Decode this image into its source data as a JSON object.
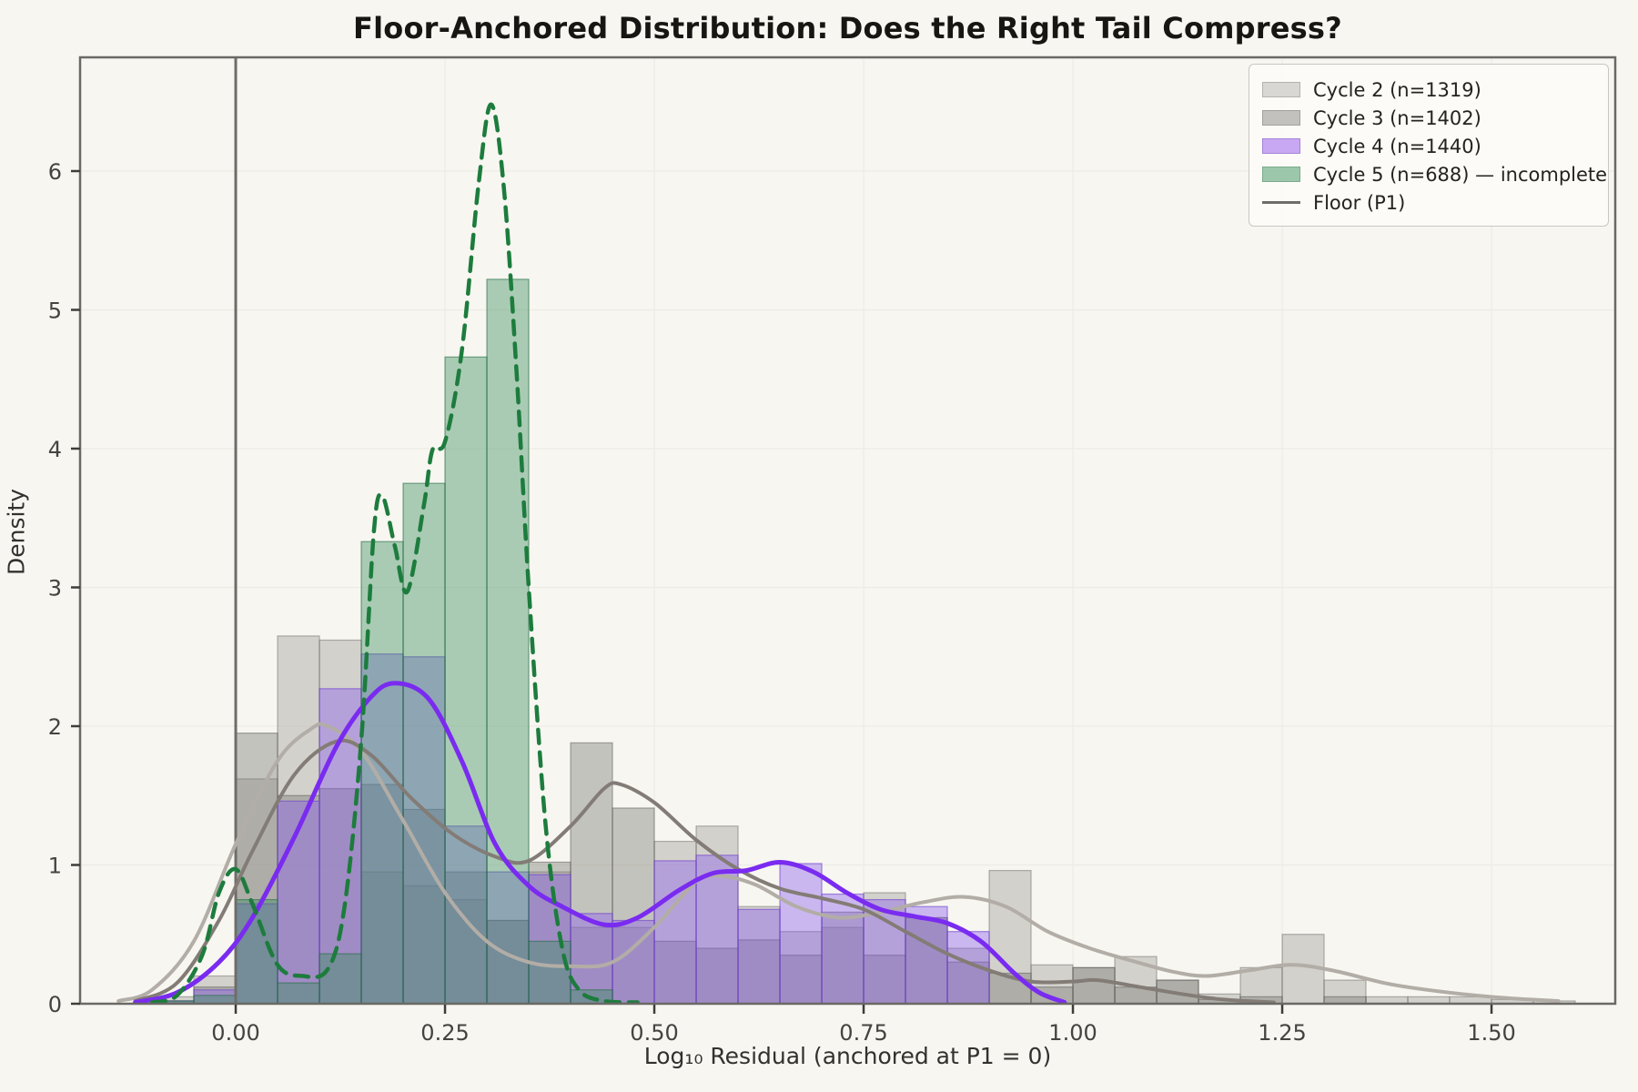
{
  "title": "Floor-Anchored Distribution: Does the Right Tail Compress?",
  "axes": {
    "x_label": "Log₁₀ Residual (anchored at P1 = 0)",
    "y_label": "Density",
    "x_ticks": [
      {
        "v": 0.0,
        "label": "0.00"
      },
      {
        "v": 0.25,
        "label": "0.25"
      },
      {
        "v": 0.5,
        "label": "0.50"
      },
      {
        "v": 0.75,
        "label": "0.75"
      },
      {
        "v": 1.0,
        "label": "1.00"
      },
      {
        "v": 1.25,
        "label": "1.25"
      },
      {
        "v": 1.5,
        "label": "1.50"
      }
    ],
    "y_ticks": [
      {
        "v": 0,
        "label": "0"
      },
      {
        "v": 1,
        "label": "1"
      },
      {
        "v": 2,
        "label": "2"
      },
      {
        "v": 3,
        "label": "3"
      },
      {
        "v": 4,
        "label": "4"
      },
      {
        "v": 5,
        "label": "5"
      },
      {
        "v": 6,
        "label": "6"
      }
    ]
  },
  "legend": {
    "items": [
      {
        "label": "Cycle 2 (n=1319)",
        "type": "patch",
        "color": "#d9d7d3",
        "edge": "#b5b3af"
      },
      {
        "label": "Cycle 3 (n=1402)",
        "type": "patch",
        "color": "#c3c1bd",
        "edge": "#a3a19d"
      },
      {
        "label": "Cycle 4 (n=1440)",
        "type": "patch",
        "color": "#c8a8f2",
        "edge": "#a585d6"
      },
      {
        "label": "Cycle 5 (n=688) — incomplete",
        "type": "patch",
        "color": "#9cc7aa",
        "edge": "#7dab8c"
      },
      {
        "label": "Floor (P1)",
        "type": "line",
        "color": "#6f6d69"
      }
    ]
  },
  "chart_data": {
    "type": "histogram+kde overlay",
    "title": "Floor-Anchored Distribution: Does the Right Tail Compress?",
    "xlabel": "Log₁₀ Residual (anchored at P1 = 0)",
    "ylabel": "Density",
    "xlim": [
      -0.186,
      1.648
    ],
    "ylim": [
      0,
      6.87
    ],
    "grid": true,
    "legend_position": "upper right",
    "bin_width": 0.05,
    "bins_start": [
      -0.1,
      -0.05,
      0.0,
      0.05,
      0.1,
      0.15,
      0.2,
      0.25,
      0.3,
      0.35,
      0.4,
      0.45,
      0.5,
      0.55,
      0.6,
      0.65,
      0.7,
      0.75,
      0.8,
      0.85,
      0.9,
      0.95,
      1.0,
      1.05,
      1.1,
      1.15,
      1.2,
      1.25,
      1.3,
      1.35,
      1.4,
      1.45,
      1.5,
      1.55
    ],
    "floor_line": {
      "x": 0,
      "label": "Floor (P1)",
      "color": "#6f6d69"
    },
    "series": [
      {
        "name": "Cycle 2 (n=1319)",
        "n": 1319,
        "fill": "rgba(158,156,150,0.40)",
        "edge": "rgba(110,108,103,0.50)",
        "line_color": "#b2ada6",
        "line_width": 4,
        "dash": null,
        "hist": [
          0.05,
          0.2,
          1.62,
          2.65,
          2.62,
          0.95,
          0.85,
          0.75,
          0.6,
          0.95,
          0.55,
          0.55,
          1.17,
          1.28,
          0.7,
          0.52,
          0.55,
          0.8,
          0.62,
          0.4,
          0.96,
          0.28,
          0.26,
          0.34,
          0.17,
          0.07,
          0.26,
          0.5,
          0.17,
          0.05,
          0.05,
          0.05,
          0.03,
          0.02
        ],
        "kde": [
          [
            -0.14,
            0.02
          ],
          [
            -0.1,
            0.1
          ],
          [
            -0.05,
            0.45
          ],
          [
            0.0,
            1.15
          ],
          [
            0.05,
            1.75
          ],
          [
            0.09,
            1.98
          ],
          [
            0.11,
            2.0
          ],
          [
            0.15,
            1.82
          ],
          [
            0.2,
            1.32
          ],
          [
            0.25,
            0.8
          ],
          [
            0.3,
            0.45
          ],
          [
            0.35,
            0.3
          ],
          [
            0.4,
            0.27
          ],
          [
            0.45,
            0.3
          ],
          [
            0.5,
            0.55
          ],
          [
            0.55,
            0.88
          ],
          [
            0.58,
            0.92
          ],
          [
            0.62,
            0.86
          ],
          [
            0.67,
            0.7
          ],
          [
            0.72,
            0.62
          ],
          [
            0.77,
            0.66
          ],
          [
            0.82,
            0.73
          ],
          [
            0.87,
            0.77
          ],
          [
            0.92,
            0.7
          ],
          [
            0.97,
            0.52
          ],
          [
            1.02,
            0.4
          ],
          [
            1.07,
            0.31
          ],
          [
            1.12,
            0.23
          ],
          [
            1.16,
            0.2
          ],
          [
            1.21,
            0.24
          ],
          [
            1.26,
            0.28
          ],
          [
            1.31,
            0.24
          ],
          [
            1.38,
            0.14
          ],
          [
            1.45,
            0.08
          ],
          [
            1.52,
            0.04
          ],
          [
            1.58,
            0.02
          ]
        ]
      },
      {
        "name": "Cycle 3 (n=1402)",
        "n": 1402,
        "fill": "rgba(125,123,118,0.42)",
        "edge": "rgba(90,88,84,0.50)",
        "line_color": "#837c76",
        "line_width": 4,
        "dash": null,
        "hist": [
          0.02,
          0.12,
          1.95,
          1.5,
          1.55,
          1.58,
          1.4,
          0.95,
          0.6,
          1.02,
          1.88,
          1.41,
          0.45,
          0.4,
          0.46,
          0.35,
          0.66,
          0.35,
          0.62,
          0.3,
          0.22,
          0.12,
          0.26,
          0.12,
          0.17,
          0.03,
          0.05,
          0.0,
          0.05,
          0,
          0,
          0,
          0,
          0
        ],
        "kde": [
          [
            -0.12,
            0.02
          ],
          [
            -0.07,
            0.15
          ],
          [
            -0.02,
            0.6
          ],
          [
            0.02,
            1.1
          ],
          [
            0.07,
            1.65
          ],
          [
            0.12,
            1.89
          ],
          [
            0.16,
            1.8
          ],
          [
            0.21,
            1.48
          ],
          [
            0.26,
            1.22
          ],
          [
            0.31,
            1.06
          ],
          [
            0.35,
            1.03
          ],
          [
            0.4,
            1.28
          ],
          [
            0.44,
            1.55
          ],
          [
            0.46,
            1.58
          ],
          [
            0.5,
            1.45
          ],
          [
            0.55,
            1.18
          ],
          [
            0.6,
            0.97
          ],
          [
            0.65,
            0.83
          ],
          [
            0.7,
            0.76
          ],
          [
            0.75,
            0.68
          ],
          [
            0.8,
            0.52
          ],
          [
            0.85,
            0.36
          ],
          [
            0.9,
            0.24
          ],
          [
            0.95,
            0.16
          ],
          [
            1.0,
            0.16
          ],
          [
            1.03,
            0.17
          ],
          [
            1.08,
            0.12
          ],
          [
            1.13,
            0.07
          ],
          [
            1.18,
            0.03
          ],
          [
            1.24,
            0.01
          ]
        ]
      },
      {
        "name": "Cycle 4 (n=1440)",
        "n": 1440,
        "fill": "rgba(141,95,236,0.42)",
        "edge": "rgba(108,62,205,0.60)",
        "line_color": "#7a2bf0",
        "line_width": 5,
        "dash": null,
        "hist": [
          0.02,
          0.1,
          0.72,
          1.46,
          2.27,
          2.52,
          2.5,
          1.28,
          0.95,
          0.93,
          0.65,
          0.6,
          1.03,
          1.07,
          0.68,
          1.01,
          0.79,
          0.75,
          0.7,
          0.52,
          0,
          0,
          0,
          0,
          0,
          0,
          0,
          0,
          0,
          0,
          0,
          0,
          0,
          0
        ],
        "kde": [
          [
            -0.12,
            0.01
          ],
          [
            -0.07,
            0.08
          ],
          [
            -0.02,
            0.3
          ],
          [
            0.02,
            0.62
          ],
          [
            0.07,
            1.2
          ],
          [
            0.12,
            1.85
          ],
          [
            0.16,
            2.2
          ],
          [
            0.19,
            2.31
          ],
          [
            0.23,
            2.2
          ],
          [
            0.27,
            1.75
          ],
          [
            0.31,
            1.15
          ],
          [
            0.35,
            0.85
          ],
          [
            0.39,
            0.7
          ],
          [
            0.44,
            0.57
          ],
          [
            0.48,
            0.62
          ],
          [
            0.53,
            0.82
          ],
          [
            0.57,
            0.94
          ],
          [
            0.61,
            0.96
          ],
          [
            0.65,
            1.02
          ],
          [
            0.69,
            0.95
          ],
          [
            0.73,
            0.8
          ],
          [
            0.77,
            0.68
          ],
          [
            0.81,
            0.63
          ],
          [
            0.85,
            0.58
          ],
          [
            0.89,
            0.45
          ],
          [
            0.93,
            0.22
          ],
          [
            0.96,
            0.08
          ],
          [
            0.99,
            0.01
          ]
        ]
      },
      {
        "name": "Cycle 5 (n=688) — incomplete",
        "n": 688,
        "fill": "rgba(52,140,90,0.40)",
        "edge": "rgba(38,110,70,0.60)",
        "line_color": "#1d7c3d",
        "line_width": 4.5,
        "dash": "15 10",
        "hist": [
          0.02,
          0.06,
          0.75,
          0.15,
          0.36,
          3.33,
          3.75,
          4.66,
          5.22,
          0.45,
          0.1,
          0,
          0,
          0,
          0,
          0,
          0,
          0,
          0,
          0,
          0,
          0,
          0,
          0,
          0,
          0,
          0,
          0,
          0,
          0,
          0,
          0,
          0,
          0
        ],
        "kde": [
          [
            -0.1,
            0.01
          ],
          [
            -0.07,
            0.06
          ],
          [
            -0.04,
            0.35
          ],
          [
            -0.02,
            0.8
          ],
          [
            0.0,
            0.97
          ],
          [
            0.02,
            0.72
          ],
          [
            0.05,
            0.28
          ],
          [
            0.08,
            0.2
          ],
          [
            0.11,
            0.25
          ],
          [
            0.13,
            0.7
          ],
          [
            0.15,
            1.9
          ],
          [
            0.165,
            3.4
          ],
          [
            0.175,
            3.66
          ],
          [
            0.19,
            3.3
          ],
          [
            0.205,
            2.97
          ],
          [
            0.225,
            3.6
          ],
          [
            0.235,
            3.99
          ],
          [
            0.25,
            4.05
          ],
          [
            0.27,
            4.7
          ],
          [
            0.29,
            5.9
          ],
          [
            0.305,
            6.48
          ],
          [
            0.32,
            5.9
          ],
          [
            0.335,
            4.6
          ],
          [
            0.35,
            3.0
          ],
          [
            0.37,
            1.3
          ],
          [
            0.39,
            0.4
          ],
          [
            0.41,
            0.1
          ],
          [
            0.44,
            0.02
          ],
          [
            0.48,
            0.01
          ]
        ]
      }
    ]
  },
  "style": {
    "background": "#f7f6f1",
    "grid_color": "#edece4",
    "spine_color": "#6b6964",
    "tick_color": "#3f3d39"
  }
}
